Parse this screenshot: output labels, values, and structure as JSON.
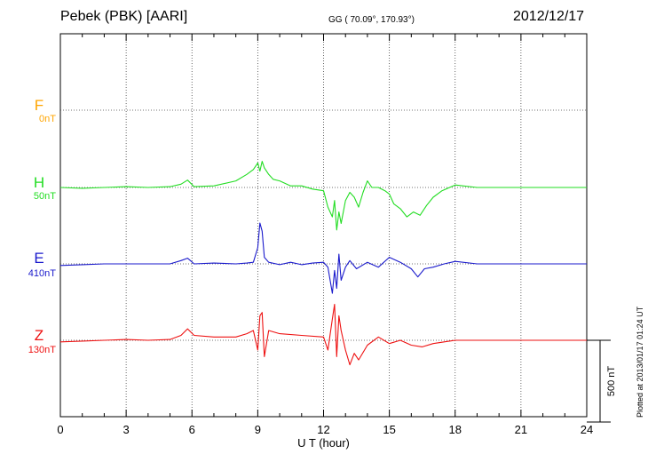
{
  "header": {
    "station": "Pebek (PBK)  [AARI]",
    "coords": "GG ( 70.09°, 170.93°)",
    "date": "2012/12/17"
  },
  "plotted_note": "Plotted at 2013/01/17 01:24  UT",
  "scale_label": "500 nT",
  "colors": {
    "F": "#ffa500",
    "H": "#22dd22",
    "E": "#1a1acc",
    "Z": "#ee1111"
  },
  "chart_data": {
    "type": "line",
    "xlabel": "U T (hour)",
    "xlim": [
      0,
      24
    ],
    "xticks": [
      0,
      3,
      6,
      9,
      12,
      15,
      18,
      21,
      24
    ],
    "scale_bar_nT": 500,
    "series": [
      {
        "name": "F",
        "offset_label": "0nT",
        "x": [],
        "y": []
      },
      {
        "name": "H",
        "offset_label": "50nT",
        "x": [
          0,
          1,
          2,
          3,
          4,
          5,
          5.5,
          5.8,
          6.1,
          7,
          8,
          8.5,
          8.8,
          9.0,
          9.1,
          9.2,
          9.3,
          9.5,
          9.7,
          10,
          10.5,
          11,
          11.5,
          12,
          12.2,
          12.4,
          12.5,
          12.6,
          12.7,
          12.8,
          13,
          13.2,
          13.4,
          13.6,
          13.8,
          14.0,
          14.2,
          14.5,
          14.8,
          15.0,
          15.2,
          15.5,
          15.8,
          16.1,
          16.4,
          16.7,
          17.0,
          17.4,
          18,
          19,
          20,
          21,
          22,
          23,
          24
        ],
        "y": [
          0,
          -5,
          0,
          5,
          0,
          5,
          20,
          45,
          5,
          10,
          40,
          80,
          110,
          150,
          100,
          160,
          120,
          80,
          50,
          40,
          10,
          10,
          -10,
          -20,
          -120,
          -180,
          -80,
          -260,
          -150,
          -220,
          -80,
          -30,
          -60,
          -120,
          -30,
          40,
          0,
          0,
          -20,
          -40,
          -100,
          -130,
          -180,
          -150,
          -170,
          -110,
          -60,
          -20,
          15,
          0,
          0,
          0,
          0,
          0,
          0
        ]
      },
      {
        "name": "E",
        "offset_label": "410nT",
        "x": [
          0,
          1,
          2,
          3,
          4,
          5,
          5.5,
          5.8,
          6.1,
          7,
          8,
          8.5,
          8.8,
          9.0,
          9.1,
          9.2,
          9.3,
          9.5,
          10,
          10.5,
          11,
          11.5,
          12,
          12.2,
          12.4,
          12.5,
          12.6,
          12.7,
          12.8,
          13,
          13.2,
          13.5,
          14,
          14.5,
          15,
          15.5,
          16,
          16.3,
          16.6,
          17,
          17.5,
          18,
          19,
          20,
          21,
          22,
          23,
          24
        ],
        "y": [
          -10,
          -5,
          0,
          0,
          0,
          0,
          20,
          35,
          0,
          5,
          0,
          5,
          10,
          100,
          250,
          200,
          40,
          10,
          -5,
          10,
          -5,
          5,
          10,
          -20,
          -180,
          -40,
          -150,
          60,
          -100,
          -20,
          20,
          -30,
          10,
          -20,
          40,
          10,
          -30,
          -80,
          -30,
          -20,
          0,
          15,
          0,
          0,
          0,
          0,
          0,
          0
        ]
      },
      {
        "name": "Z",
        "offset_label": "130nT",
        "x": [
          0,
          1,
          2,
          3,
          4,
          5,
          5.5,
          5.8,
          6.1,
          7,
          8,
          8.5,
          8.8,
          9.0,
          9.1,
          9.2,
          9.3,
          9.5,
          10,
          11,
          12,
          12.2,
          12.4,
          12.5,
          12.6,
          12.7,
          12.8,
          13.0,
          13.2,
          13.4,
          13.6,
          14,
          14.5,
          15,
          15.5,
          16,
          16.5,
          17,
          17.5,
          18,
          19,
          20,
          21,
          22,
          23,
          24
        ],
        "y": [
          -10,
          -5,
          0,
          5,
          0,
          5,
          30,
          70,
          30,
          20,
          20,
          40,
          60,
          -60,
          150,
          170,
          -100,
          60,
          40,
          30,
          20,
          -60,
          130,
          220,
          -100,
          150,
          60,
          -60,
          -150,
          -80,
          -120,
          -30,
          20,
          -20,
          0,
          -30,
          -40,
          -20,
          -10,
          0,
          0,
          0,
          0,
          0,
          0,
          0
        ]
      }
    ]
  }
}
